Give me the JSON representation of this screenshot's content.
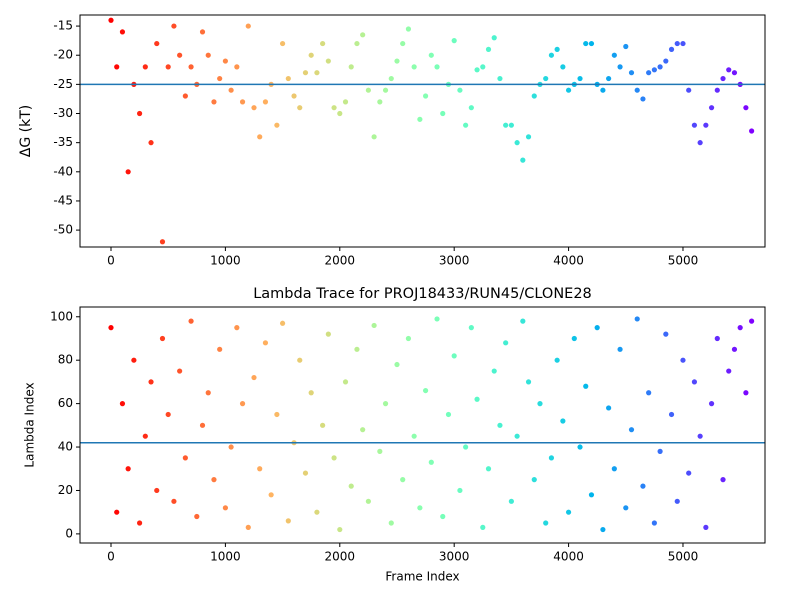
{
  "chart_data": [
    {
      "type": "scatter",
      "ylabel": "ΔG (kT)",
      "colormap": "rainbow_r",
      "hline": -25,
      "hline_color": "#1f77b4",
      "x": [
        0,
        50,
        100,
        150,
        200,
        250,
        300,
        350,
        400,
        450,
        500,
        550,
        600,
        650,
        700,
        750,
        800,
        850,
        900,
        950,
        1000,
        1050,
        1100,
        1150,
        1200,
        1250,
        1300,
        1350,
        1400,
        1450,
        1500,
        1550,
        1600,
        1650,
        1700,
        1750,
        1800,
        1850,
        1900,
        1950,
        2000,
        2050,
        2100,
        2150,
        2200,
        2250,
        2300,
        2350,
        2400,
        2450,
        2500,
        2550,
        2600,
        2650,
        2700,
        2750,
        2800,
        2850,
        2900,
        2950,
        3000,
        3050,
        3100,
        3150,
        3200,
        3250,
        3300,
        3350,
        3400,
        3450,
        3500,
        3550,
        3600,
        3650,
        3700,
        3750,
        3800,
        3850,
        3900,
        3950,
        4000,
        4050,
        4100,
        4150,
        4200,
        4250,
        4300,
        4350,
        4400,
        4450,
        4500,
        4550,
        4600,
        4650,
        4700,
        4750,
        4800,
        4850,
        4900,
        4950,
        5000,
        5050,
        5100,
        5150,
        5200,
        5250,
        5300,
        5350,
        5400,
        5450,
        5500,
        5550,
        5600
      ],
      "values": [
        -14,
        -22,
        -16,
        -40,
        -25,
        -30,
        -22,
        -35,
        -18,
        -52,
        -22,
        -15,
        -20,
        -27,
        -22,
        -25,
        -16,
        -20,
        -28,
        -24,
        -21,
        -26,
        -22,
        -28,
        -15,
        -29,
        -34,
        -28,
        -25,
        -32,
        -18,
        -24,
        -27,
        -29,
        -23,
        -20,
        -23,
        -18,
        -21,
        -29,
        -30,
        -28,
        -22,
        -18,
        -16.5,
        -26,
        -34,
        -28,
        -26,
        -24,
        -21,
        -18,
        -15.5,
        -22,
        -31,
        -27,
        -20,
        -22,
        -30,
        -25,
        -17.5,
        -26,
        -32,
        -29,
        -22.5,
        -22,
        -19,
        -17,
        -24,
        -32,
        -32,
        -35,
        -38,
        -34,
        -27,
        -25,
        -24,
        -20,
        -19,
        -22,
        -26,
        -25,
        -24,
        -18,
        -18,
        -25,
        -26,
        -24,
        -20,
        -22,
        -18.5,
        -23,
        -26,
        -27.5,
        -23,
        -22.5,
        -22,
        -21,
        -19,
        -18,
        -18,
        -26,
        -32,
        -35,
        -32,
        -29,
        -26,
        -24,
        -22.5,
        -23,
        -25,
        -29,
        -33
      ],
      "xlim": [
        -271,
        5717
      ],
      "xticks": [
        0,
        1000,
        2000,
        3000,
        4000,
        5000
      ],
      "ylim": [
        -52.9,
        -13.1
      ],
      "yticks": [
        -50,
        -45,
        -40,
        -35,
        -30,
        -25,
        -20,
        -15
      ]
    },
    {
      "type": "scatter",
      "title": "Lambda Trace for PROJ18433/RUN45/CLONE28",
      "xlabel": "Frame Index",
      "ylabel": "Lambda Index",
      "colormap": "rainbow_r",
      "hline": 42,
      "hline_color": "#1f77b4",
      "x": [
        0,
        50,
        100,
        150,
        200,
        250,
        300,
        350,
        400,
        450,
        500,
        550,
        600,
        650,
        700,
        750,
        800,
        850,
        900,
        950,
        1000,
        1050,
        1100,
        1150,
        1200,
        1250,
        1300,
        1350,
        1400,
        1450,
        1500,
        1550,
        1600,
        1650,
        1700,
        1750,
        1800,
        1850,
        1900,
        1950,
        2000,
        2050,
        2100,
        2150,
        2200,
        2250,
        2300,
        2350,
        2400,
        2450,
        2500,
        2550,
        2600,
        2650,
        2700,
        2750,
        2800,
        2850,
        2900,
        2950,
        3000,
        3050,
        3100,
        3150,
        3200,
        3250,
        3300,
        3350,
        3400,
        3450,
        3500,
        3550,
        3600,
        3650,
        3700,
        3750,
        3800,
        3850,
        3900,
        3950,
        4000,
        4050,
        4100,
        4150,
        4200,
        4250,
        4300,
        4350,
        4400,
        4450,
        4500,
        4550,
        4600,
        4650,
        4700,
        4750,
        4800,
        4850,
        4900,
        4950,
        5000,
        5050,
        5100,
        5150,
        5200,
        5250,
        5300,
        5350,
        5400,
        5450,
        5500,
        5550,
        5600
      ],
      "values": [
        95,
        10,
        60,
        30,
        80,
        5,
        45,
        70,
        20,
        90,
        55,
        15,
        75,
        35,
        98,
        8,
        50,
        65,
        25,
        85,
        12,
        40,
        95,
        60,
        3,
        72,
        30,
        88,
        18,
        55,
        97,
        6,
        42,
        80,
        28,
        65,
        10,
        50,
        92,
        35,
        2,
        70,
        22,
        85,
        48,
        15,
        96,
        38,
        60,
        5,
        78,
        25,
        90,
        45,
        12,
        66,
        33,
        99,
        8,
        55,
        82,
        20,
        40,
        95,
        62,
        3,
        30,
        75,
        50,
        88,
        15,
        45,
        98,
        70,
        25,
        60,
        5,
        35,
        80,
        52,
        10,
        90,
        40,
        68,
        18,
        95,
        2,
        58,
        30,
        85,
        12,
        48,
        99,
        22,
        65,
        5,
        38,
        92,
        55,
        15,
        80,
        28,
        70,
        45,
        3,
        60,
        90,
        25,
        75,
        85,
        95,
        65,
        98
      ],
      "xlim": [
        -271,
        5717
      ],
      "xticks": [
        0,
        1000,
        2000,
        3000,
        4000,
        5000
      ],
      "ylim": [
        -4.2,
        104.5
      ],
      "yticks": [
        0,
        20,
        40,
        60,
        80,
        100
      ]
    }
  ]
}
